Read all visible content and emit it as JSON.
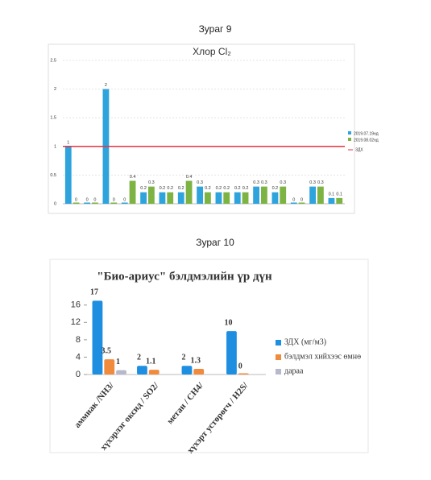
{
  "chart_data": [
    {
      "type": "bar",
      "caption": "Зураг 9",
      "title": "Хлор Cl₂",
      "categories": [
        null,
        null,
        null,
        null,
        null,
        null,
        null,
        null,
        null,
        null,
        null,
        null,
        null,
        null,
        null
      ],
      "series": [
        {
          "name": "2019.07.19нд",
          "color": "#2ea3dc",
          "values": [
            1,
            0,
            2,
            0,
            0.2,
            0.2,
            0.2,
            0.3,
            0.2,
            0.2,
            0.3,
            0.2,
            0,
            0.3,
            0.1
          ]
        },
        {
          "name": "2019.08.02нд",
          "color": "#7cb342",
          "values": [
            0,
            0,
            0,
            0.4,
            0.3,
            0.2,
            0.4,
            0.2,
            0.2,
            0.2,
            0.3,
            0.3,
            0,
            0.3,
            0.1
          ]
        }
      ],
      "reference_line": {
        "value": 1,
        "label": "ЗДХ",
        "color": "#e8333c"
      },
      "ylim": [
        0,
        2.5
      ],
      "yticks": [
        0,
        0.5,
        1,
        1.5,
        2,
        2.5
      ],
      "grid": true,
      "legend": "right"
    },
    {
      "type": "bar",
      "caption": "Зураг 10",
      "title": "\"Био-ариус\" бэлдмэлийн үр дүн",
      "categories": [
        "аммиак /NH3/",
        "хүхэрлэг оксид / SO2/",
        "метан / CH4/",
        "хүхэрт устөрөгч / H2S/"
      ],
      "series": [
        {
          "name": "ЗДХ (мг/м3)",
          "color": "#1e8fe0",
          "values": [
            17,
            2,
            2,
            10
          ]
        },
        {
          "name": "бэлдмэл хийхээс өмнө",
          "color": "#f08a3c",
          "values": [
            3.5,
            1.1,
            1.3,
            0
          ]
        },
        {
          "name": "дараа",
          "color": "#b8b8cc",
          "values": [
            1,
            null,
            null,
            null
          ]
        }
      ],
      "ylim": [
        0,
        18
      ],
      "yticks": [
        0,
        4,
        8,
        12,
        16
      ],
      "grid": false,
      "legend": "right"
    }
  ]
}
